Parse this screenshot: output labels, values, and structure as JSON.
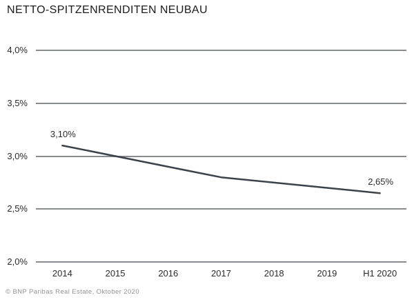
{
  "footer": "© BNP Paribas Real Estate, Oktober 2020",
  "colors": {
    "line": "#3a424b",
    "grid": "#888b8e",
    "title_text": "#1c1c1c",
    "axis_text": "#2b2b2b",
    "footer_text": "#8f9296"
  },
  "chart_data": {
    "type": "line",
    "title": "NETTO-SPITZENRENDITEN NEUBAU",
    "categories": [
      "2014",
      "2015",
      "2016",
      "2017",
      "2018",
      "2019",
      "H1 2020"
    ],
    "values": [
      3.1,
      3.0,
      2.9,
      2.8,
      2.75,
      2.7,
      2.65
    ],
    "xlabel": "",
    "ylabel": "",
    "ylim": [
      2.0,
      4.0
    ],
    "y_ticks": [
      {
        "value": 4.0,
        "label": "4,0%"
      },
      {
        "value": 3.5,
        "label": "3,5%"
      },
      {
        "value": 3.0,
        "label": "3,0%"
      },
      {
        "value": 2.5,
        "label": "2,5%"
      },
      {
        "value": 2.0,
        "label": "2,0%"
      }
    ],
    "point_labels": [
      {
        "index": 0,
        "text": "3,10%"
      },
      {
        "index": 6,
        "text": "2,65%"
      }
    ],
    "grid": "horizontal-only",
    "legend": "none"
  }
}
